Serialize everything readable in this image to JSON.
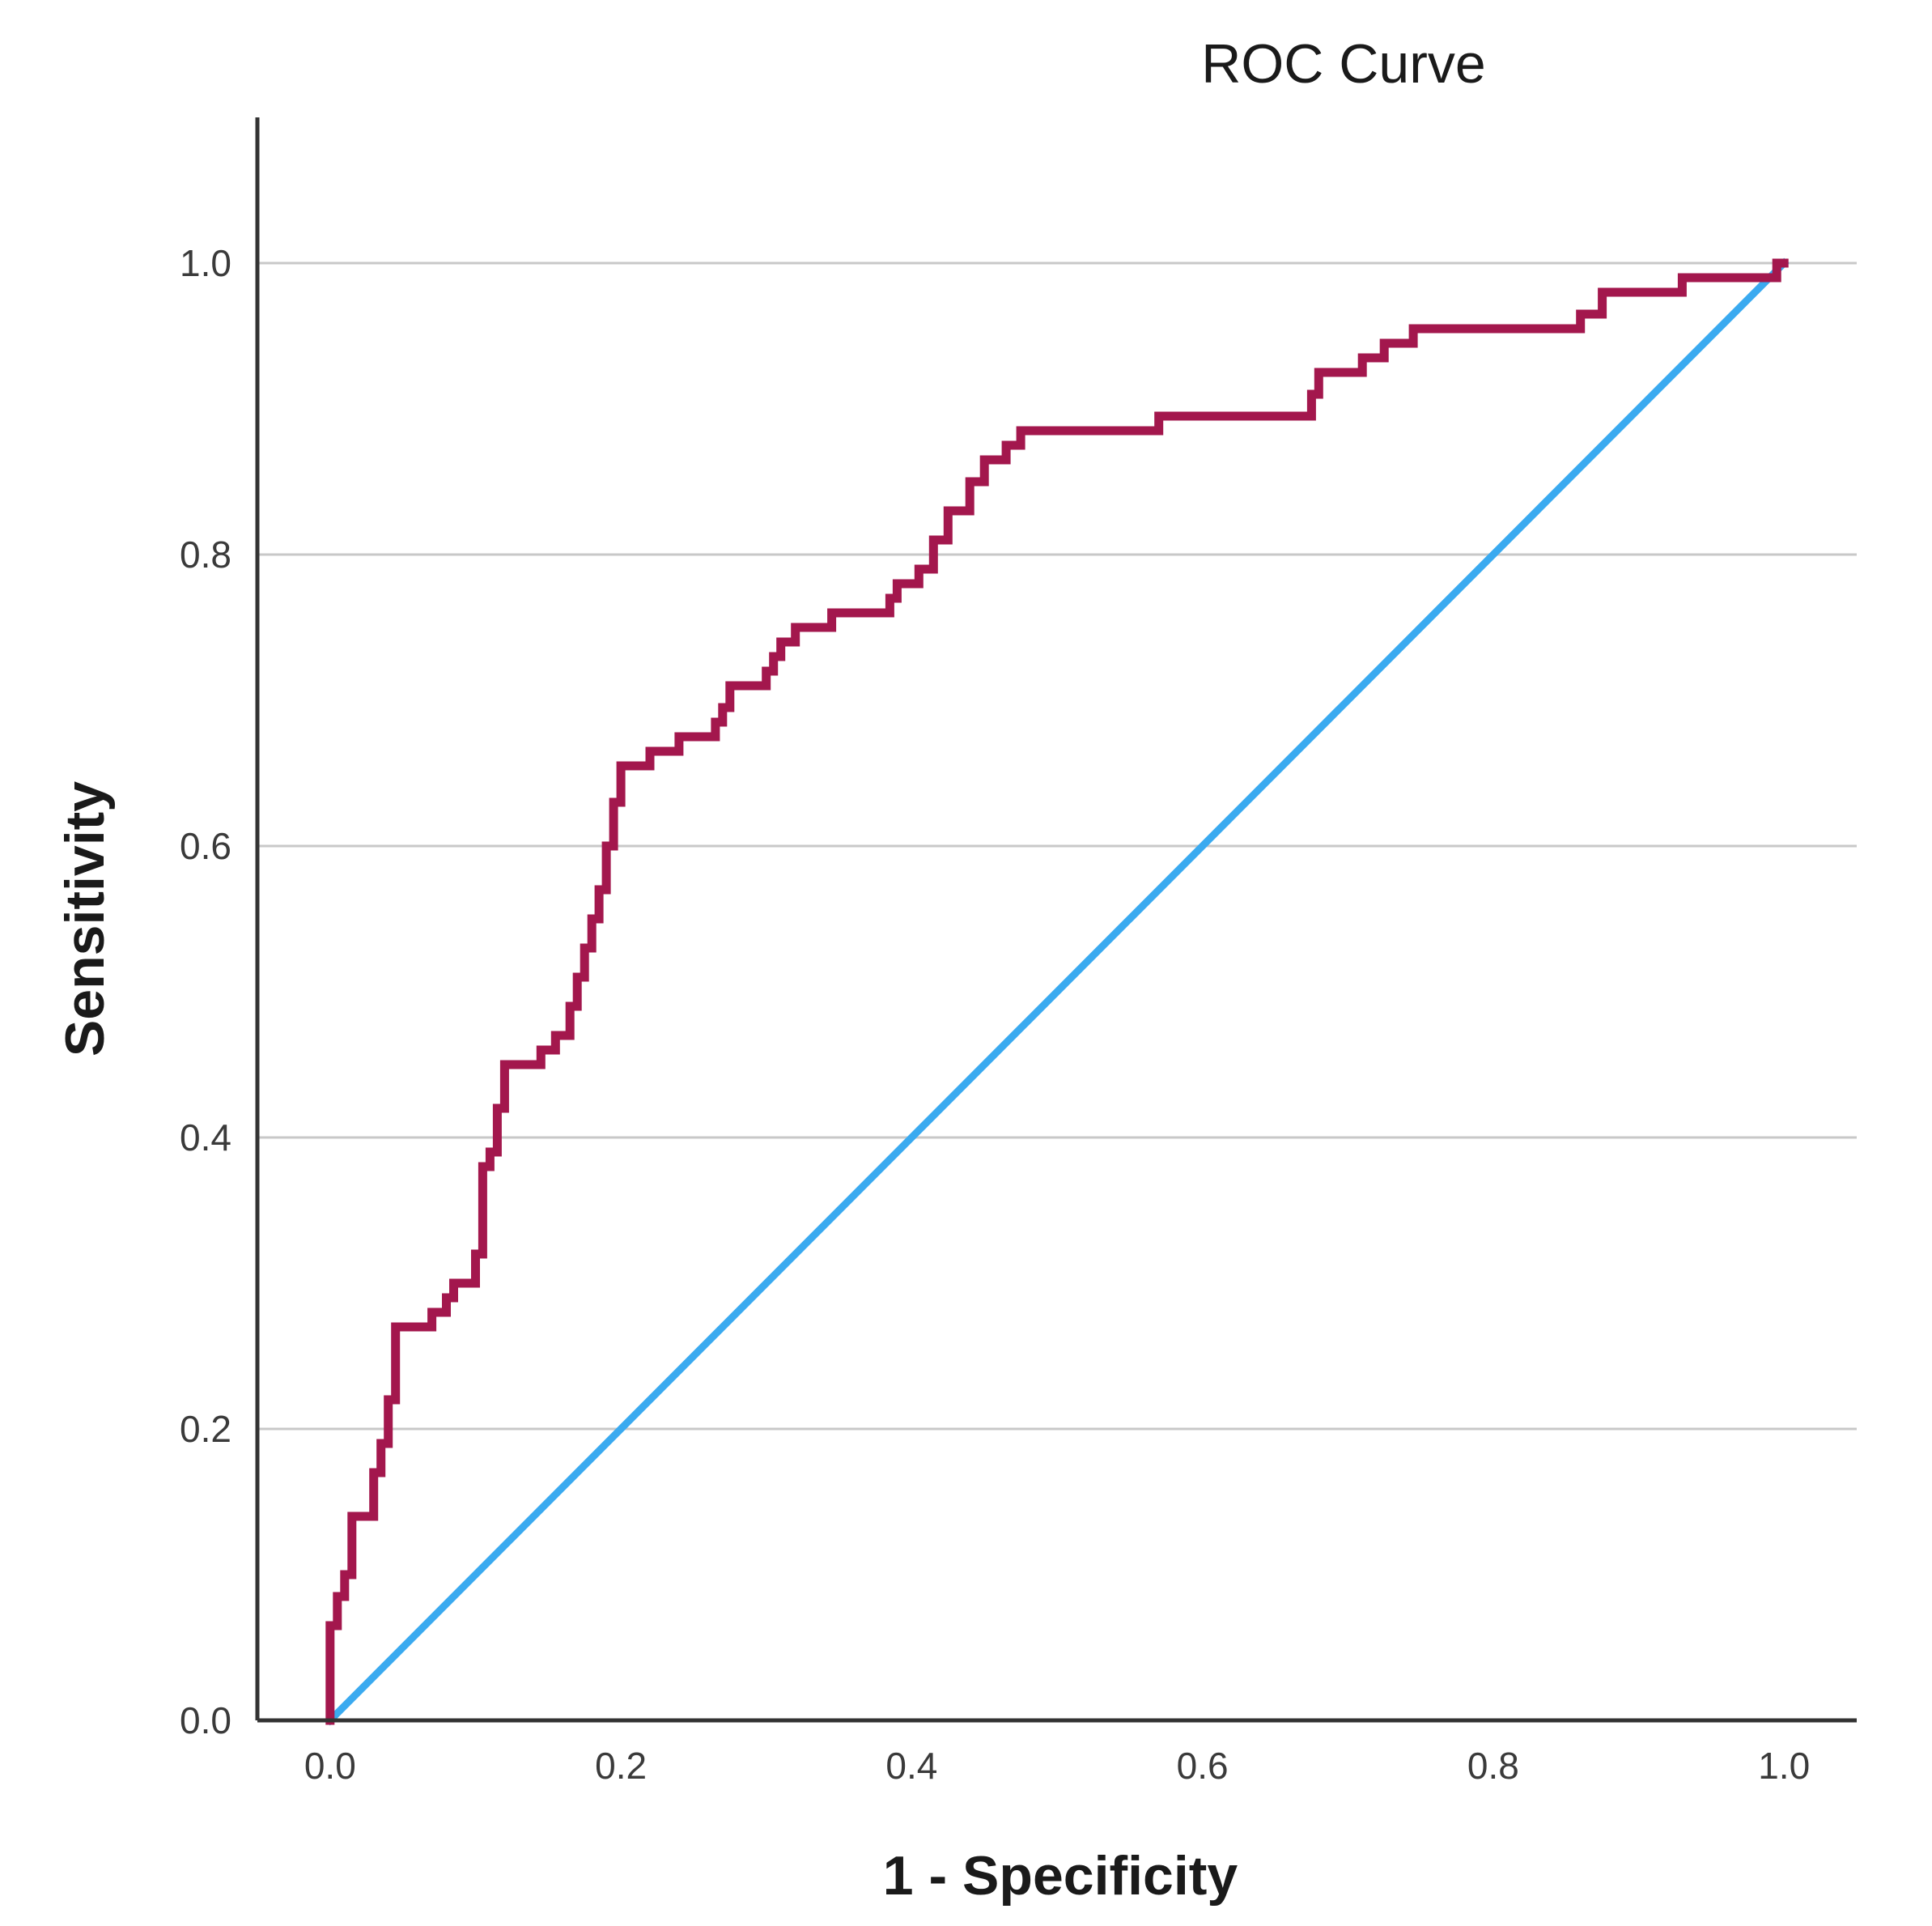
{
  "chart_data": {
    "type": "line",
    "title": "ROC Curve",
    "xlabel": "1 - Specificity",
    "ylabel": "Sensitivity",
    "xlim": [
      -0.05,
      1.05
    ],
    "ylim": [
      0,
      1.1
    ],
    "x_ticks": [
      "0.0",
      "0.2",
      "0.4",
      "0.6",
      "0.8",
      "1.0"
    ],
    "y_ticks": [
      "0.0",
      "0.2",
      "0.4",
      "0.6",
      "0.8",
      "1.0"
    ],
    "grid": "horizontal",
    "legend": "none",
    "series": [
      {
        "color": "#a3174d",
        "points": [
          [
            0.0,
            0.0
          ],
          [
            0.0,
            0.065
          ],
          [
            0.005,
            0.065
          ],
          [
            0.005,
            0.085
          ],
          [
            0.01,
            0.085
          ],
          [
            0.01,
            0.1
          ],
          [
            0.015,
            0.1
          ],
          [
            0.015,
            0.14
          ],
          [
            0.03,
            0.14
          ],
          [
            0.03,
            0.17
          ],
          [
            0.035,
            0.17
          ],
          [
            0.035,
            0.19
          ],
          [
            0.04,
            0.19
          ],
          [
            0.04,
            0.22
          ],
          [
            0.045,
            0.22
          ],
          [
            0.045,
            0.27
          ],
          [
            0.07,
            0.27
          ],
          [
            0.07,
            0.28
          ],
          [
            0.08,
            0.28
          ],
          [
            0.08,
            0.29
          ],
          [
            0.085,
            0.29
          ],
          [
            0.085,
            0.3
          ],
          [
            0.1,
            0.3
          ],
          [
            0.1,
            0.32
          ],
          [
            0.105,
            0.32
          ],
          [
            0.105,
            0.38
          ],
          [
            0.11,
            0.38
          ],
          [
            0.11,
            0.39
          ],
          [
            0.115,
            0.39
          ],
          [
            0.115,
            0.42
          ],
          [
            0.12,
            0.42
          ],
          [
            0.12,
            0.45
          ],
          [
            0.145,
            0.45
          ],
          [
            0.145,
            0.46
          ],
          [
            0.155,
            0.46
          ],
          [
            0.155,
            0.47
          ],
          [
            0.165,
            0.47
          ],
          [
            0.165,
            0.49
          ],
          [
            0.17,
            0.49
          ],
          [
            0.17,
            0.51
          ],
          [
            0.175,
            0.51
          ],
          [
            0.175,
            0.53
          ],
          [
            0.18,
            0.53
          ],
          [
            0.18,
            0.55
          ],
          [
            0.185,
            0.55
          ],
          [
            0.185,
            0.57
          ],
          [
            0.19,
            0.57
          ],
          [
            0.19,
            0.6
          ],
          [
            0.195,
            0.6
          ],
          [
            0.195,
            0.63
          ],
          [
            0.2,
            0.63
          ],
          [
            0.2,
            0.655
          ],
          [
            0.22,
            0.655
          ],
          [
            0.22,
            0.665
          ],
          [
            0.24,
            0.665
          ],
          [
            0.24,
            0.675
          ],
          [
            0.265,
            0.675
          ],
          [
            0.265,
            0.685
          ],
          [
            0.27,
            0.685
          ],
          [
            0.27,
            0.695
          ],
          [
            0.275,
            0.695
          ],
          [
            0.275,
            0.71
          ],
          [
            0.3,
            0.71
          ],
          [
            0.3,
            0.72
          ],
          [
            0.305,
            0.72
          ],
          [
            0.305,
            0.73
          ],
          [
            0.31,
            0.73
          ],
          [
            0.31,
            0.74
          ],
          [
            0.32,
            0.74
          ],
          [
            0.32,
            0.75
          ],
          [
            0.345,
            0.75
          ],
          [
            0.345,
            0.76
          ],
          [
            0.385,
            0.76
          ],
          [
            0.385,
            0.77
          ],
          [
            0.39,
            0.77
          ],
          [
            0.39,
            0.78
          ],
          [
            0.405,
            0.78
          ],
          [
            0.405,
            0.79
          ],
          [
            0.415,
            0.79
          ],
          [
            0.415,
            0.81
          ],
          [
            0.425,
            0.81
          ],
          [
            0.425,
            0.83
          ],
          [
            0.44,
            0.83
          ],
          [
            0.44,
            0.85
          ],
          [
            0.45,
            0.85
          ],
          [
            0.45,
            0.865
          ],
          [
            0.465,
            0.865
          ],
          [
            0.465,
            0.875
          ],
          [
            0.475,
            0.875
          ],
          [
            0.475,
            0.885
          ],
          [
            0.57,
            0.885
          ],
          [
            0.57,
            0.895
          ],
          [
            0.675,
            0.895
          ],
          [
            0.675,
            0.91
          ],
          [
            0.68,
            0.91
          ],
          [
            0.68,
            0.925
          ],
          [
            0.71,
            0.925
          ],
          [
            0.71,
            0.935
          ],
          [
            0.725,
            0.935
          ],
          [
            0.725,
            0.945
          ],
          [
            0.745,
            0.945
          ],
          [
            0.745,
            0.955
          ],
          [
            0.86,
            0.955
          ],
          [
            0.86,
            0.965
          ],
          [
            0.875,
            0.965
          ],
          [
            0.875,
            0.98
          ],
          [
            0.93,
            0.98
          ],
          [
            0.93,
            0.99
          ],
          [
            0.995,
            0.99
          ],
          [
            0.995,
            1.0
          ],
          [
            1.0,
            1.0
          ]
        ]
      },
      {
        "color": "#3aaaf0",
        "points": [
          [
            0.0,
            0.0
          ],
          [
            1.0,
            1.0
          ]
        ]
      }
    ]
  }
}
